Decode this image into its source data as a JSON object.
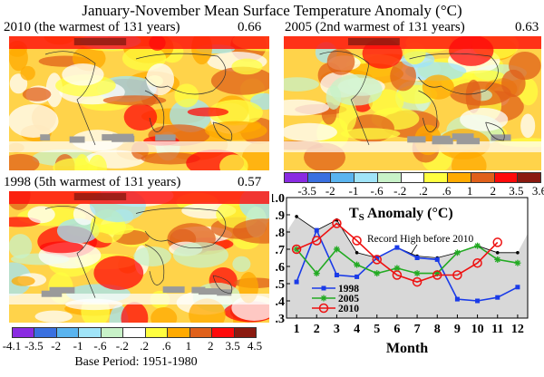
{
  "title": "January-November Mean Surface Temperature Anomaly (°C)",
  "maps": [
    {
      "label": "2010 (the warmest of 131 years)",
      "value": "0.66"
    },
    {
      "label": "2005 (2nd warmest of 131 years)",
      "value": "0.63"
    },
    {
      "label": "1998 (5th warmest of 131 years)",
      "value": "0.57"
    }
  ],
  "colorbar": {
    "colors": [
      "#8a2be2",
      "#3a70e0",
      "#5ab4ef",
      "#a0e4f8",
      "#c8f2c8",
      "#ffffff",
      "#ffff40",
      "#ffaa00",
      "#e0601a",
      "#ff0a0a",
      "#8b1a10"
    ],
    "labels_top": [
      "-3.5",
      "-2",
      "-1",
      "-.6",
      "-.2",
      ".2",
      ".6",
      "1",
      "2",
      "3.5",
      "3.6"
    ],
    "labels_bottom": [
      "-4.1",
      "-3.5",
      "-2",
      "-1",
      "-.6",
      "-.2",
      ".2",
      ".6",
      "1",
      "2",
      "3.5",
      "4.5"
    ]
  },
  "base_period": "Base Period: 1951-1980",
  "chart_data": {
    "type": "line",
    "title": "TS Anomaly (°C)",
    "title_main": "T",
    "title_sub": "S",
    "title_rest": " Anomaly (°C)",
    "xlabel": "Month",
    "ylabel": "",
    "x": [
      1,
      2,
      3,
      4,
      5,
      6,
      7,
      8,
      9,
      10,
      11,
      12
    ],
    "ylim": [
      0.3,
      1.0
    ],
    "yticks": [
      ".3",
      ".4",
      ".5",
      ".6",
      ".7",
      ".8",
      ".9",
      "1.0"
    ],
    "annotation": "Record High before 2010",
    "record_high": {
      "values": [
        0.89,
        0.81,
        0.87,
        0.68,
        0.65,
        0.71,
        0.66,
        0.65,
        0.68,
        0.72,
        0.68,
        0.68
      ],
      "color": "#000000",
      "fill": "#d8d8d8"
    },
    "series": [
      {
        "name": "1998",
        "color": "#1a3be8",
        "marker": "square",
        "values": [
          0.51,
          0.81,
          0.55,
          0.54,
          0.65,
          0.71,
          0.65,
          0.64,
          0.41,
          0.4,
          0.42,
          0.48
        ]
      },
      {
        "name": "2005",
        "color": "#22aa22",
        "marker": "star",
        "values": [
          0.7,
          0.56,
          0.7,
          0.61,
          0.56,
          0.59,
          0.56,
          0.56,
          0.68,
          0.72,
          0.64,
          0.62
        ]
      },
      {
        "name": "2010",
        "color": "#ee1111",
        "marker": "circle",
        "values": [
          0.7,
          0.75,
          0.85,
          0.75,
          0.64,
          0.55,
          0.51,
          0.55,
          0.55,
          0.62,
          0.74,
          null
        ]
      }
    ],
    "legend_position": "bottom-left"
  }
}
